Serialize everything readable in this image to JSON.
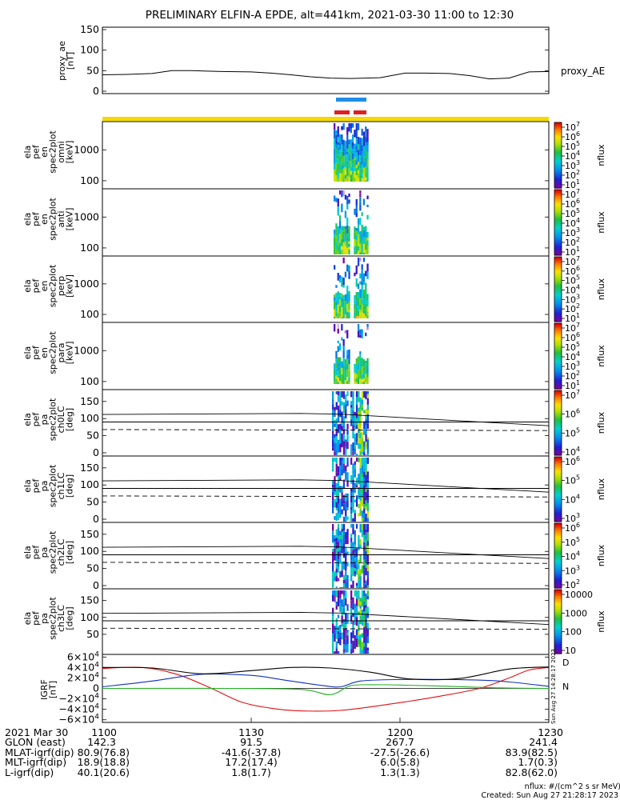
{
  "title": "PRELIMINARY ELFIN-A EPDE, alt=441km, 2021-03-30 11:00 to 12:30",
  "colors": {
    "blue_bar": "#1e8fe8",
    "red_bar": "#e02020",
    "yellow_bar": "#f5d800",
    "mag_x": "#000000",
    "mag_y": "#1030c0",
    "mag_z": "#20b020",
    "mag_r": "#e01010"
  },
  "chart_data": [
    {
      "name": "proxy_ae",
      "type": "line",
      "ylabel_lines": [
        "proxy_ae",
        "[nT]"
      ],
      "legend": "proxy_AE",
      "ylim": [
        0,
        150
      ],
      "yticks": [
        "150",
        "100",
        "50",
        "0"
      ],
      "ytick_values": [
        150,
        100,
        50,
        0
      ],
      "xlim": [
        0,
        90
      ],
      "x": [
        0,
        5,
        10,
        14,
        18,
        24,
        30,
        34,
        38,
        42,
        46,
        50,
        56,
        61,
        65,
        70,
        74,
        78,
        82,
        86,
        90
      ],
      "values": [
        40,
        41,
        43,
        50,
        50,
        48,
        47,
        44,
        40,
        35,
        32,
        31,
        33,
        44,
        44,
        43,
        38,
        30,
        32,
        47,
        48
      ]
    },
    {
      "name": "ela_pef_en_spec2plot_omni",
      "type": "heatmap",
      "ylabel_lines": [
        "ela",
        "pef",
        "en",
        "spec2plot",
        "omni",
        "[keV]"
      ],
      "yticks": [
        "1000",
        "100"
      ],
      "colorbar_label": "nflux",
      "colorbar_ticks": [
        "10^7",
        "10^6",
        "10^5",
        "10^4",
        "10^3",
        "10^2",
        "10^1"
      ]
    },
    {
      "name": "ela_pef_en_spec2plot_anti",
      "type": "heatmap",
      "ylabel_lines": [
        "ela",
        "pef",
        "en",
        "spec2plot",
        "anti",
        "[keV]"
      ],
      "yticks": [
        "1000",
        "100"
      ],
      "colorbar_label": "nflux",
      "colorbar_ticks": [
        "10^7",
        "10^6",
        "10^5",
        "10^4",
        "10^3",
        "10^2",
        "10^1"
      ]
    },
    {
      "name": "ela_pef_en_spec2plot_perp",
      "type": "heatmap",
      "ylabel_lines": [
        "ela",
        "pef",
        "en",
        "spec2plot",
        "perp",
        "[keV]"
      ],
      "yticks": [
        "1000",
        "100"
      ],
      "colorbar_label": "nflux",
      "colorbar_ticks": [
        "10^7",
        "10^6",
        "10^5",
        "10^4",
        "10^3",
        "10^2",
        "10^1"
      ]
    },
    {
      "name": "ela_pef_en_spec2plot_para",
      "type": "heatmap",
      "ylabel_lines": [
        "ela",
        "pef",
        "en",
        "spec2plot",
        "para",
        "[keV]"
      ],
      "yticks": [
        "1000",
        "100"
      ],
      "colorbar_label": "nflux",
      "colorbar_ticks": [
        "10^7",
        "10^6",
        "10^5",
        "10^4",
        "10^3",
        "10^2",
        "10^1"
      ]
    },
    {
      "name": "ela_pef_pa_spec2plot_ch0LC",
      "type": "heatmap",
      "ylabel_lines": [
        "ela",
        "pef",
        "pa",
        "spec2plot",
        "ch0LC",
        "[deg]"
      ],
      "yticks": [
        "150",
        "100",
        "50",
        "0"
      ],
      "colorbar_label": "nflux",
      "colorbar_ticks": [
        "10^7",
        "10^6",
        "10^5",
        "10^4"
      ]
    },
    {
      "name": "ela_pef_pa_spec2plot_ch1LC",
      "type": "heatmap",
      "ylabel_lines": [
        "ela",
        "pef",
        "pa",
        "spec2plot",
        "ch1LC",
        "[deg]"
      ],
      "yticks": [
        "150",
        "100",
        "50",
        "0"
      ],
      "colorbar_label": "nflux",
      "colorbar_ticks": [
        "10^6",
        "10^5",
        "10^4",
        "10^3"
      ]
    },
    {
      "name": "ela_pef_pa_spec2plot_ch2LC",
      "type": "heatmap",
      "ylabel_lines": [
        "ela",
        "pef",
        "pa",
        "spec2plot",
        "ch2LC",
        "[deg]"
      ],
      "yticks": [
        "150",
        "100",
        "50",
        "0"
      ],
      "colorbar_label": "nflux",
      "colorbar_ticks": [
        "10^6",
        "10^5",
        "10^4",
        "10^3",
        "10^2"
      ]
    },
    {
      "name": "ela_pef_pa_spec2plot_ch3LC",
      "type": "heatmap",
      "ylabel_lines": [
        "ela",
        "pef",
        "pa",
        "spec2plot",
        "ch3LC",
        "[deg]"
      ],
      "yticks": [
        "150",
        "100",
        "50"
      ],
      "colorbar_label": "nflux",
      "colorbar_ticks": [
        "10000",
        "1000",
        "100",
        "10"
      ]
    },
    {
      "name": "igrf_field",
      "type": "line",
      "ylabel_lines": [
        "IGRF",
        "[nT]"
      ],
      "yticks": [
        "6×10^4",
        "4×10^4",
        "2×10^4",
        "0",
        "−2×10^4",
        "−4×10^4",
        "−6×10^4"
      ],
      "ytick_values": [
        60000,
        40000,
        20000,
        0,
        -20000,
        -40000,
        -60000
      ],
      "ylim": [
        -65000,
        65000
      ],
      "xlim": [
        0,
        90
      ],
      "series": [
        {
          "name": "D",
          "color": "#e01010",
          "x": [
            0,
            8,
            15,
            22,
            28,
            34,
            40,
            48,
            58,
            68,
            76,
            82,
            86,
            90
          ],
          "values": [
            38000,
            40000,
            27000,
            0,
            -26000,
            -38000,
            -43000,
            -42000,
            -30000,
            -15000,
            0,
            20000,
            35000,
            40000
          ]
        },
        {
          "name": "N",
          "color": "#20b020",
          "x": [
            0,
            25,
            40,
            46,
            50,
            55,
            60,
            70,
            80,
            90
          ],
          "values": [
            0,
            0,
            -2000,
            -12000,
            5000,
            7000,
            6500,
            4000,
            1000,
            0
          ]
        },
        {
          "x": [
            0,
            10,
            20,
            30,
            36,
            44,
            48,
            52,
            60,
            70,
            80,
            90
          ],
          "values": [
            3000,
            14000,
            27000,
            25000,
            17000,
            6000,
            3000,
            14000,
            17000,
            17000,
            14000,
            4000
          ]
        },
        {
          "x": [
            0,
            10,
            20,
            30,
            38,
            46,
            54,
            62,
            72,
            82,
            90
          ],
          "values": [
            40000,
            39000,
            28000,
            34000,
            40000,
            39000,
            31000,
            18000,
            19000,
            37000,
            41000
          ]
        }
      ]
    }
  ],
  "xaxis": {
    "row_labels": [
      "2021 Mar 30",
      "GLON (east)",
      "MLAT-igrf(dip)",
      "MLT-igrf(dip)",
      "L-igrf(dip)"
    ],
    "columns": [
      {
        "x": 0,
        "values": [
          "1100",
          "142.3",
          "80.9(76.8)",
          "18.9(18.8)",
          "40.1(20.6)"
        ]
      },
      {
        "x": 30,
        "values": [
          "1130",
          "91.5",
          "-41.6(-37.8)",
          "17.2(17.4)",
          "1.8(1.7)"
        ]
      },
      {
        "x": 60,
        "values": [
          "1200",
          "267.7",
          "-27.5(-26.6)",
          "6.0(5.8)",
          "1.3(1.3)"
        ]
      },
      {
        "x": 90,
        "values": [
          "1230",
          "241.4",
          "83.9(82.5)",
          "1.7(0.3)",
          "82.8(62.0)"
        ]
      }
    ]
  },
  "footer": {
    "units": "nflux: #/(cm^2 s sr MeV)",
    "created": "Created: Sun Aug 27 21:28:17 2023",
    "stamp": "Sun Aug 27 14:28:17 2023"
  }
}
